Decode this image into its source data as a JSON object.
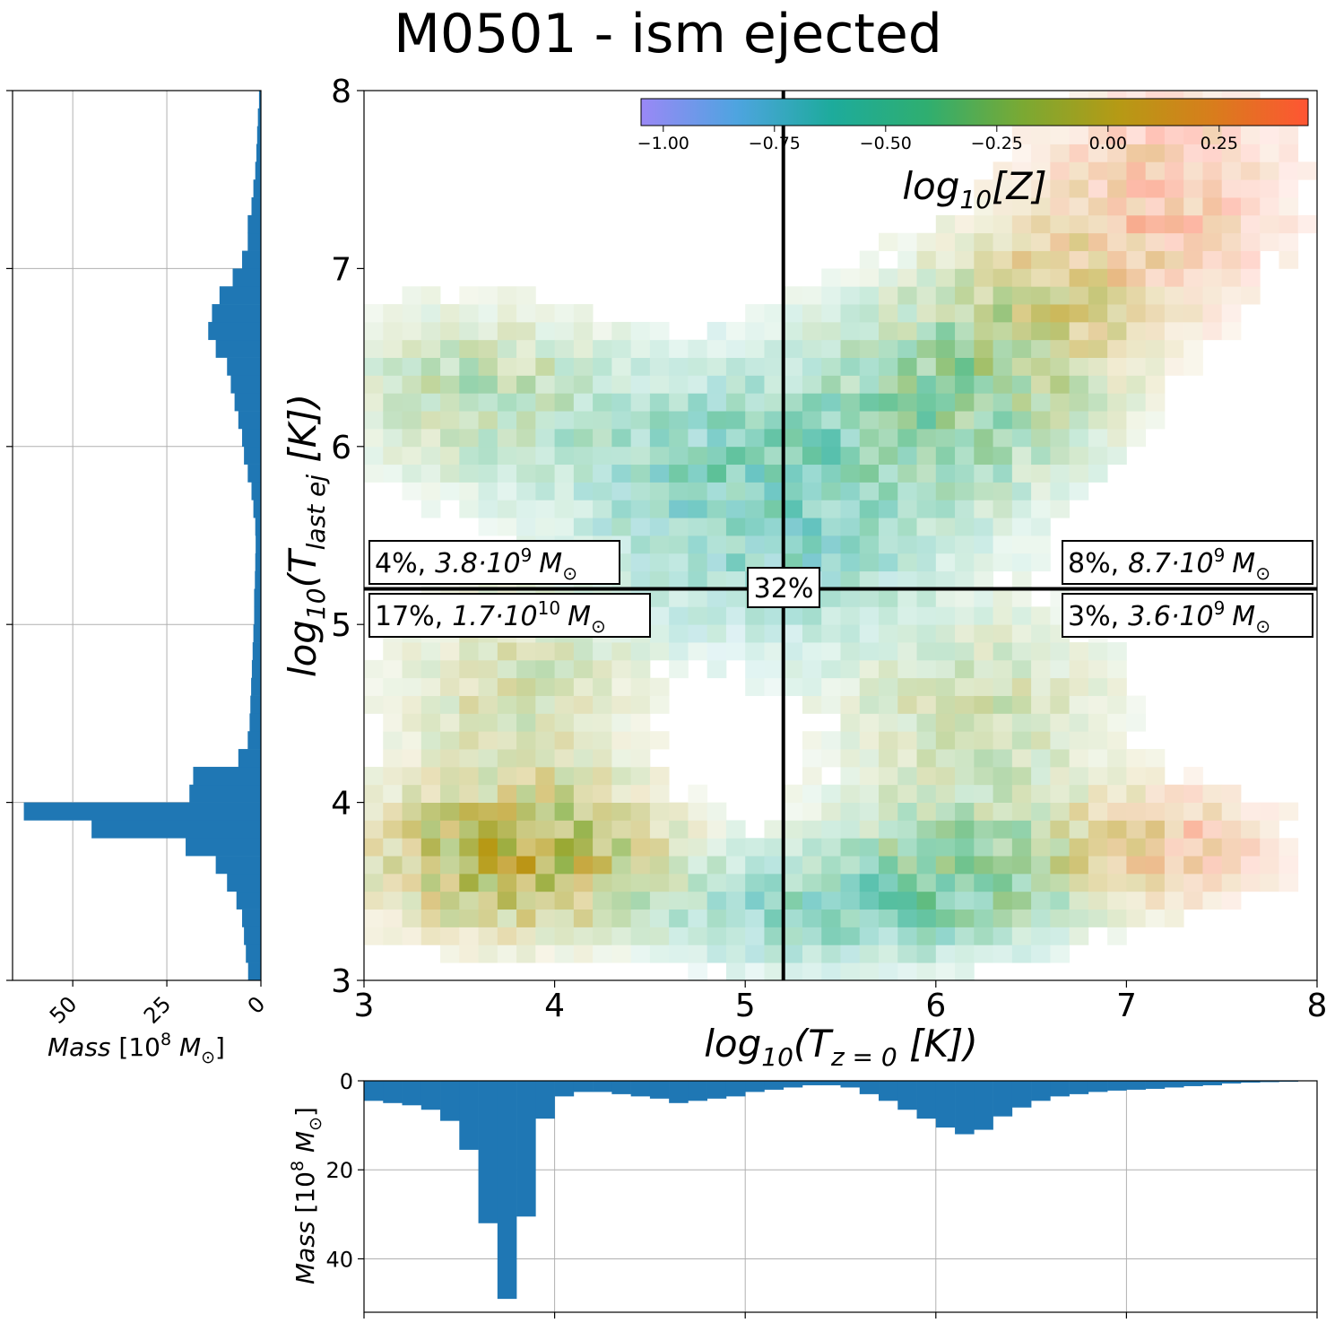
{
  "chart_data": [
    {
      "panel": "main",
      "type": "heatmap",
      "title": "M0501 - ism ejected",
      "xlabel": "log10(T z=0 [K])",
      "ylabel": "log10(T last ej [K])",
      "xlim": [
        3,
        8
      ],
      "ylim": [
        3,
        8
      ],
      "xticks": [
        "3",
        "4",
        "5",
        "6",
        "7",
        "8"
      ],
      "yticks": [
        "3",
        "4",
        "5",
        "6",
        "7",
        "8"
      ],
      "bins": 50,
      "threshold_x": 5.2,
      "threshold_y": 5.2,
      "colorbar": {
        "label": "log10[Z]",
        "range": [
          -1.05,
          0.45
        ],
        "ticks": [
          "−1.00",
          "−0.75",
          "−0.50",
          "−0.25",
          "0.00",
          "0.25"
        ],
        "tick_values": [
          -1.0,
          -0.75,
          -0.5,
          -0.25,
          0.0,
          0.25
        ],
        "colors": [
          "#9a88f6",
          "#4ea4e0",
          "#1dab9c",
          "#2fae70",
          "#7aa933",
          "#b59a15",
          "#d87d1c",
          "#ff5533"
        ]
      },
      "quadrant_labels": [
        {
          "position": "top-left",
          "pct": "4%,",
          "mass": "3.8·10",
          "exp": "9"
        },
        {
          "position": "top-right",
          "pct": "8%,",
          "mass": "8.7·10",
          "exp": "9"
        },
        {
          "position": "bottom-left",
          "pct": "17%,",
          "mass": "1.7·10",
          "exp": "10"
        },
        {
          "position": "bottom-right",
          "pct": "3%,",
          "mass": "3.6·10",
          "exp": "9"
        },
        {
          "position": "center",
          "pct": "32%"
        }
      ],
      "clusters": [
        {
          "x": 3.8,
          "y": 3.7,
          "sx": 0.45,
          "sy": 0.25,
          "w": 1.0,
          "z": -0.05
        },
        {
          "x": 3.6,
          "y": 6.3,
          "sx": 0.45,
          "sy": 0.3,
          "w": 0.35,
          "z": -0.25
        },
        {
          "x": 5.0,
          "y": 5.9,
          "sx": 0.6,
          "sy": 0.35,
          "w": 0.55,
          "z": -0.55
        },
        {
          "x": 6.1,
          "y": 6.3,
          "sx": 0.45,
          "sy": 0.4,
          "w": 0.5,
          "z": -0.35
        },
        {
          "x": 6.6,
          "y": 6.8,
          "sx": 0.35,
          "sy": 0.35,
          "w": 0.35,
          "z": 0.05
        },
        {
          "x": 7.2,
          "y": 7.4,
          "sx": 0.4,
          "sy": 0.4,
          "w": 0.3,
          "z": 0.35
        },
        {
          "x": 5.5,
          "y": 3.4,
          "sx": 0.6,
          "sy": 0.2,
          "w": 0.5,
          "z": -0.55
        },
        {
          "x": 6.2,
          "y": 3.7,
          "sx": 0.45,
          "sy": 0.25,
          "w": 0.5,
          "z": -0.3
        },
        {
          "x": 7.2,
          "y": 3.75,
          "sx": 0.35,
          "sy": 0.2,
          "w": 0.35,
          "z": 0.3
        },
        {
          "x": 6.2,
          "y": 4.5,
          "sx": 0.45,
          "sy": 0.35,
          "w": 0.3,
          "z": -0.2
        },
        {
          "x": 3.8,
          "y": 4.6,
          "sx": 0.4,
          "sy": 0.4,
          "w": 0.3,
          "z": -0.15
        },
        {
          "x": 5.2,
          "y": 5.3,
          "sx": 0.5,
          "sy": 0.3,
          "w": 0.3,
          "z": -0.6
        }
      ]
    },
    {
      "panel": "left-marginal",
      "type": "bar",
      "orientation": "horizontal",
      "xlabel": "Mass [10^8 M⊙]",
      "xticks": [
        "50",
        "25",
        "0"
      ],
      "xtick_values": [
        50,
        25,
        0
      ],
      "xlim": [
        0,
        66
      ],
      "y_range": [
        3,
        8
      ],
      "bin_width": 0.1,
      "values": [
        3.4,
        4.0,
        4.5,
        5.0,
        6.5,
        9.0,
        12.0,
        20.0,
        45.0,
        63.0,
        19.0,
        18.0,
        6.0,
        3.5,
        3.0,
        2.8,
        2.6,
        2.4,
        2.2,
        2.0,
        1.8,
        1.8,
        1.6,
        1.5,
        1.4,
        1.5,
        2.0,
        2.5,
        3.5,
        4.5,
        5.0,
        6.0,
        7.0,
        8.0,
        9.0,
        12.0,
        14.0,
        13.0,
        11.0,
        7.5,
        5.0,
        3.5,
        3.5,
        2.5,
        2.0,
        1.5,
        1.2,
        1.0,
        0.8,
        0.5
      ]
    },
    {
      "panel": "bottom-marginal",
      "type": "bar",
      "ylabel": "Mass [10^8 M⊙]",
      "yticks": [
        "0",
        "20",
        "40"
      ],
      "ytick_values": [
        0,
        20,
        40
      ],
      "ylim": [
        0,
        52
      ],
      "x_range": [
        3,
        8
      ],
      "bin_width": 0.1,
      "values": [
        4.5,
        5.0,
        5.5,
        6.5,
        9.0,
        15.5,
        32.0,
        49.0,
        30.5,
        8.5,
        3.5,
        2.5,
        2.5,
        3.0,
        3.5,
        4.0,
        5.0,
        4.5,
        4.0,
        3.5,
        2.5,
        2.0,
        1.5,
        1.0,
        1.0,
        1.5,
        3.0,
        4.5,
        6.5,
        8.5,
        10.5,
        12.0,
        11.0,
        8.0,
        6.0,
        4.5,
        3.5,
        3.0,
        2.5,
        2.2,
        2.0,
        1.8,
        1.5,
        1.2,
        1.0,
        0.6,
        0.4,
        0.3,
        0.2,
        0.1
      ]
    }
  ]
}
